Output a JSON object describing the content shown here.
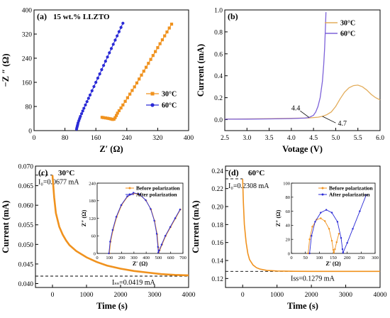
{
  "colors": {
    "orange": "#f0921e",
    "blue": "#2a2ad6",
    "purple": "#7d62d9",
    "tan": "#e3ad5c",
    "black": "#000000"
  },
  "chart_data": [
    {
      "id": "a",
      "type": "scatter",
      "panel_label": "(a)",
      "annotation": "15 wt.% LLZTO",
      "xlabel": "Z′   (Ω)",
      "ylabel": "−Z ″ (Ω)",
      "xlim": [
        0,
        400
      ],
      "ylim": [
        0,
        400
      ],
      "xticks": [
        0,
        80,
        160,
        240,
        320,
        400
      ],
      "yticks": [
        0,
        80,
        160,
        240,
        320,
        400
      ],
      "ytick_labels": [
        "0",
        "80",
        "160",
        "240",
        "320",
        "400"
      ],
      "legend_position": "lower-right",
      "series": [
        {
          "name": "30°C",
          "color": "#f0921e",
          "marker": "square",
          "x": [
            176,
            180,
            185,
            190,
            194,
            198,
            201,
            204,
            207,
            210,
            213,
            216,
            220,
            225,
            230,
            236,
            242,
            248,
            254,
            260,
            266,
            272,
            278,
            284,
            290,
            296,
            302,
            308,
            314,
            320,
            326,
            332,
            338,
            344,
            350,
            356
          ],
          "y": [
            44,
            43,
            42,
            41,
            40,
            39,
            38,
            37,
            38,
            43,
            50,
            58,
            66,
            75,
            85,
            97,
            109,
            121,
            133,
            145,
            158,
            171,
            184,
            197,
            210,
            223,
            236,
            249,
            262,
            275,
            288,
            301,
            314,
            327,
            340,
            353
          ]
        },
        {
          "name": "60°C",
          "color": "#2a2ad6",
          "marker": "circle",
          "x": [
            110,
            111,
            112,
            113,
            114,
            116,
            118,
            120,
            123,
            126,
            129,
            133,
            137,
            141,
            145,
            150,
            155,
            160,
            165,
            170,
            175,
            180,
            185,
            190,
            195,
            200,
            205,
            210,
            215,
            220,
            225,
            230
          ],
          "y": [
            5,
            10,
            15,
            20,
            26,
            33,
            40,
            47,
            56,
            65,
            74,
            85,
            96,
            107,
            118,
            132,
            146,
            160,
            174,
            188,
            202,
            216,
            230,
            244,
            258,
            272,
            286,
            300,
            314,
            328,
            342,
            356
          ]
        }
      ]
    },
    {
      "id": "b",
      "type": "line",
      "panel_label": "(b)",
      "xlabel": "Votage (V)",
      "ylabel": "Current (mA)",
      "xlim": [
        2.5,
        6.0
      ],
      "ylim": [
        -0.1,
        1.0
      ],
      "xticks": [
        2.5,
        3.0,
        3.5,
        4.0,
        4.5,
        5.0,
        5.5,
        6.0
      ],
      "yticks": [
        0.0,
        0.2,
        0.4,
        0.6,
        0.8,
        1.0
      ],
      "xtick_labels": [
        "2.5",
        "3.0",
        "3.5",
        "4.0",
        "4.5",
        "5.0",
        "5.5",
        "6.0"
      ],
      "ytick_labels": [
        "0.0",
        "0.2",
        "0.4",
        "0.6",
        "0.8",
        "1.0"
      ],
      "legend_position": "top-right",
      "annotations": [
        {
          "text": "4.4",
          "x": 4.4,
          "y": 0.02
        },
        {
          "text": "4.7",
          "x": 4.7,
          "y": 0.03
        }
      ],
      "series": [
        {
          "name": "30°C",
          "color": "#e3ad5c",
          "x": [
            2.5,
            3.0,
            3.5,
            4.0,
            4.4,
            4.6,
            4.7,
            4.8,
            4.9,
            5.0,
            5.1,
            5.2,
            5.3,
            5.4,
            5.5,
            5.6,
            5.7,
            5.8,
            5.9,
            6.0
          ],
          "y": [
            0.005,
            0.007,
            0.009,
            0.012,
            0.016,
            0.022,
            0.03,
            0.045,
            0.07,
            0.12,
            0.19,
            0.25,
            0.29,
            0.31,
            0.315,
            0.3,
            0.27,
            0.23,
            0.2,
            0.18
          ]
        },
        {
          "name": "60°C",
          "color": "#7d62d9",
          "x": [
            2.5,
            3.0,
            3.5,
            4.0,
            4.3,
            4.4,
            4.5,
            4.55,
            4.6,
            4.65,
            4.7,
            4.73,
            4.75,
            4.77,
            4.78
          ],
          "y": [
            0.004,
            0.005,
            0.007,
            0.01,
            0.014,
            0.02,
            0.04,
            0.07,
            0.12,
            0.2,
            0.35,
            0.5,
            0.65,
            0.85,
            0.98
          ]
        }
      ]
    },
    {
      "id": "c",
      "type": "line",
      "panel_label": "(c)",
      "temp_label": "30°C",
      "xlabel": "Time (s)",
      "ylabel": "Current (mA)",
      "xlim": [
        -500,
        4000
      ],
      "ylim": [
        0.039,
        0.07
      ],
      "xticks": [
        0,
        1000,
        2000,
        3000,
        4000
      ],
      "yticks": [
        0.04,
        0.045,
        0.05,
        0.055,
        0.06,
        0.065,
        0.07
      ],
      "ytick_labels": [
        "0.040",
        "0.045",
        "0.050",
        "0.055",
        "0.060",
        "0.065",
        "0.070"
      ],
      "I0_text": "I₀=0.0677 mA",
      "Iss_text": "Iₛₛ=0.0419 mA",
      "I0": 0.0677,
      "Iss": 0.0419,
      "series": [
        {
          "name": "current",
          "color": "#f0921e",
          "x": [
            0,
            50,
            100,
            200,
            300,
            400,
            500,
            700,
            1000,
            1300,
            1600,
            2000,
            2400,
            2800,
            3200,
            3600,
            4000
          ],
          "y": [
            0.0677,
            0.062,
            0.058,
            0.0545,
            0.0525,
            0.051,
            0.0498,
            0.0483,
            0.0467,
            0.0455,
            0.0446,
            0.0438,
            0.0432,
            0.0428,
            0.0424,
            0.0422,
            0.0421
          ]
        }
      ],
      "inset": {
        "xlabel": "Z′  (Ω)",
        "ylabel": "Z″ (Ω)",
        "xlim": [
          0,
          700
        ],
        "ylim": [
          0,
          240
        ],
        "xticks": [
          0,
          100,
          200,
          300,
          400,
          500,
          600,
          700
        ],
        "yticks": [
          0,
          60,
          120,
          180,
          240
        ],
        "legend_position": "top-right",
        "series": [
          {
            "name": "Before polarization",
            "color": "#f0921e",
            "x": [
              100,
              110,
              130,
              160,
              200,
              250,
              300,
              350,
              400,
              440,
              470,
              490,
              500,
              503,
              510,
              530,
              560,
              600,
              640,
              680
            ],
            "y": [
              0,
              40,
              80,
              125,
              165,
              195,
              205,
              200,
              180,
              150,
              110,
              65,
              20,
              3,
              10,
              30,
              60,
              90,
              120,
              150
            ]
          },
          {
            "name": "After polarization",
            "color": "#2a2ad6",
            "x": [
              96,
              106,
              126,
              156,
              196,
              246,
              296,
              346,
              396,
              436,
              466,
              486,
              496,
              499,
              506,
              526,
              556,
              596,
              636,
              676
            ],
            "y": [
              0,
              40,
              80,
              125,
              165,
              195,
              207,
              202,
              182,
              152,
              112,
              67,
              22,
              3,
              10,
              30,
              60,
              90,
              120,
              150
            ]
          }
        ]
      }
    },
    {
      "id": "d",
      "type": "line",
      "panel_label": "(d)",
      "temp_label": "60°C",
      "xlabel": "Time (s)",
      "ylabel": "Current (mA)",
      "xlim": [
        -500,
        4000
      ],
      "ylim": [
        0.11,
        0.245
      ],
      "xticks": [
        0,
        1000,
        2000,
        3000,
        4000
      ],
      "yticks": [
        0.12,
        0.14,
        0.16,
        0.18,
        0.2,
        0.22,
        0.24
      ],
      "ytick_labels": [
        "0.12",
        "0.14",
        "0.16",
        "0.18",
        "0.20",
        "0.22",
        "0.24"
      ],
      "I0_text": "I₀=0.2308 mA",
      "Iss_text": "Iss=0.1279 mA",
      "I0": 0.2308,
      "Iss": 0.1279,
      "series": [
        {
          "name": "current",
          "color": "#f0921e",
          "x": [
            0,
            20,
            50,
            100,
            150,
            200,
            300,
            400,
            500,
            700,
            1000,
            1500,
            2000,
            3000,
            4000
          ],
          "y": [
            0.2308,
            0.205,
            0.18,
            0.16,
            0.148,
            0.141,
            0.135,
            0.132,
            0.1305,
            0.129,
            0.1283,
            0.128,
            0.1279,
            0.1279,
            0.1279
          ]
        }
      ],
      "inset": {
        "xlabel": "Z′  (Ω)",
        "ylabel": "Z″ (Ω)",
        "xlim": [
          0,
          300
        ],
        "ylim": [
          0,
          100
        ],
        "xticks": [
          0,
          50,
          100,
          150,
          200,
          250,
          300
        ],
        "yticks": [
          0,
          20,
          40,
          60,
          80,
          100
        ],
        "legend_position": "top-right",
        "series": [
          {
            "name": "Before polarization",
            "color": "#f0921e",
            "x": [
              60,
              65,
              75,
              90,
              105,
              120,
              135,
              145,
              150,
              152,
              156,
              162,
              170
            ],
            "y": [
              0,
              20,
              38,
              48,
              50,
              46,
              35,
              18,
              5,
              1,
              6,
              16,
              28
            ]
          },
          {
            "name": "After polarization",
            "color": "#2a2ad6",
            "x": [
              65,
              72,
              85,
              105,
              125,
              145,
              165,
              178,
              183,
              185,
              200,
              220,
              245,
              268
            ],
            "y": [
              0,
              25,
              45,
              58,
              62,
              58,
              45,
              22,
              6,
              1,
              15,
              35,
              60,
              83
            ]
          }
        ]
      }
    }
  ]
}
